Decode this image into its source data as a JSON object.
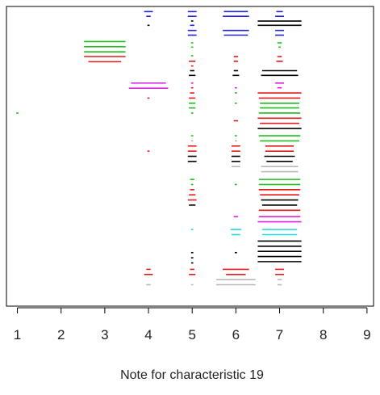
{
  "chart_data": {
    "type": "scatter",
    "title": "",
    "xlabel": "Note for characteristic 19",
    "ylabel": "",
    "xlim": [
      0.75,
      9.15
    ],
    "ylim": [
      0,
      70
    ],
    "grid": false,
    "legend": "none",
    "x_ticks": [
      1,
      2,
      3,
      4,
      5,
      6,
      7,
      8,
      9
    ],
    "x_tick_labels": [
      "1",
      "2",
      "3",
      "4",
      "5",
      "6",
      "7",
      "8",
      "9"
    ],
    "mark_style": "horizontal segments centred on each note; segment length grows with the number of occurrences",
    "colors": {
      "black": "#000000",
      "red": "#e41a1c",
      "green": "#1fbf1f",
      "blue": "#2222dd",
      "magenta": "#e020e0",
      "cyan": "#22d8d8",
      "gray": "#b8b8b8"
    },
    "segments": [
      {
        "x": 4,
        "y": 68.8,
        "width": 0.2,
        "color": "blue"
      },
      {
        "x": 4,
        "y": 67.7,
        "width": 0.1,
        "color": "blue"
      },
      {
        "x": 4,
        "y": 65.6,
        "width": 0.05,
        "color": "black"
      },
      {
        "x": 5,
        "y": 68.8,
        "width": 0.2,
        "color": "blue"
      },
      {
        "x": 5,
        "y": 67.7,
        "width": 0.2,
        "color": "blue"
      },
      {
        "x": 5,
        "y": 66.6,
        "width": 0.05,
        "color": "black"
      },
      {
        "x": 5,
        "y": 65.6,
        "width": 0.1,
        "color": "blue"
      },
      {
        "x": 5,
        "y": 64.4,
        "width": 0.2,
        "color": "blue"
      },
      {
        "x": 5,
        "y": 63.3,
        "width": 0.2,
        "color": "blue"
      },
      {
        "x": 6,
        "y": 68.8,
        "width": 0.55,
        "color": "blue"
      },
      {
        "x": 6,
        "y": 67.7,
        "width": 0.6,
        "color": "blue"
      },
      {
        "x": 6,
        "y": 64.4,
        "width": 0.6,
        "color": "blue"
      },
      {
        "x": 6,
        "y": 63.3,
        "width": 0.55,
        "color": "blue"
      },
      {
        "x": 7,
        "y": 68.8,
        "width": 0.15,
        "color": "blue"
      },
      {
        "x": 7,
        "y": 67.7,
        "width": 0.2,
        "color": "blue"
      },
      {
        "x": 7,
        "y": 66.6,
        "width": 1.0,
        "color": "black"
      },
      {
        "x": 7,
        "y": 65.6,
        "width": 1.0,
        "color": "black"
      },
      {
        "x": 7,
        "y": 64.4,
        "width": 0.2,
        "color": "blue"
      },
      {
        "x": 7,
        "y": 63.3,
        "width": 0.2,
        "color": "blue"
      },
      {
        "x": 3,
        "y": 61.8,
        "width": 0.95,
        "color": "green"
      },
      {
        "x": 3,
        "y": 60.6,
        "width": 0.95,
        "color": "green"
      },
      {
        "x": 3,
        "y": 59.4,
        "width": 0.95,
        "color": "green"
      },
      {
        "x": 3,
        "y": 58.3,
        "width": 0.95,
        "color": "red"
      },
      {
        "x": 3,
        "y": 57.1,
        "width": 0.75,
        "color": "red"
      },
      {
        "x": 5,
        "y": 61.5,
        "width": 0.05,
        "color": "green"
      },
      {
        "x": 5,
        "y": 60.5,
        "width": 0.05,
        "color": "green"
      },
      {
        "x": 5,
        "y": 58.5,
        "width": 0.05,
        "color": "green"
      },
      {
        "x": 5,
        "y": 57.2,
        "width": 0.15,
        "color": "red"
      },
      {
        "x": 5,
        "y": 56.1,
        "width": 0.05,
        "color": "red"
      },
      {
        "x": 5,
        "y": 55.0,
        "width": 0.1,
        "color": "black"
      },
      {
        "x": 5,
        "y": 53.9,
        "width": 0.15,
        "color": "black"
      },
      {
        "x": 6,
        "y": 58.3,
        "width": 0.1,
        "color": "red"
      },
      {
        "x": 6,
        "y": 57.2,
        "width": 0.1,
        "color": "red"
      },
      {
        "x": 6,
        "y": 55.0,
        "width": 0.1,
        "color": "black"
      },
      {
        "x": 6,
        "y": 53.9,
        "width": 0.15,
        "color": "black"
      },
      {
        "x": 7,
        "y": 61.5,
        "width": 0.1,
        "color": "green"
      },
      {
        "x": 7,
        "y": 60.5,
        "width": 0.05,
        "color": "green"
      },
      {
        "x": 7,
        "y": 58.3,
        "width": 0.1,
        "color": "red"
      },
      {
        "x": 7,
        "y": 57.2,
        "width": 0.15,
        "color": "red"
      },
      {
        "x": 7,
        "y": 55.0,
        "width": 0.8,
        "color": "black"
      },
      {
        "x": 7,
        "y": 53.9,
        "width": 0.85,
        "color": "black"
      },
      {
        "x": 4,
        "y": 52.1,
        "width": 0.8,
        "color": "magenta"
      },
      {
        "x": 4,
        "y": 50.9,
        "width": 0.9,
        "color": "magenta"
      },
      {
        "x": 4,
        "y": 48.6,
        "width": 0.05,
        "color": "red"
      },
      {
        "x": 5,
        "y": 52.1,
        "width": 0.05,
        "color": "magenta"
      },
      {
        "x": 5,
        "y": 51.0,
        "width": 0.05,
        "color": "red"
      },
      {
        "x": 5,
        "y": 49.8,
        "width": 0.1,
        "color": "red"
      },
      {
        "x": 5,
        "y": 48.6,
        "width": 0.15,
        "color": "red"
      },
      {
        "x": 5,
        "y": 47.4,
        "width": 0.15,
        "color": "green"
      },
      {
        "x": 5,
        "y": 46.3,
        "width": 0.15,
        "color": "green"
      },
      {
        "x": 6,
        "y": 51.0,
        "width": 0.05,
        "color": "magenta"
      },
      {
        "x": 6,
        "y": 49.8,
        "width": 0.05,
        "color": "green"
      },
      {
        "x": 6,
        "y": 47.4,
        "width": 0.05,
        "color": "green"
      },
      {
        "x": 7,
        "y": 52.1,
        "width": 0.2,
        "color": "magenta"
      },
      {
        "x": 7,
        "y": 51.0,
        "width": 0.1,
        "color": "magenta"
      },
      {
        "x": 7,
        "y": 49.8,
        "width": 1.0,
        "color": "red"
      },
      {
        "x": 7,
        "y": 48.6,
        "width": 0.95,
        "color": "red"
      },
      {
        "x": 7,
        "y": 47.4,
        "width": 0.9,
        "color": "green"
      },
      {
        "x": 7,
        "y": 46.3,
        "width": 0.9,
        "color": "green"
      },
      {
        "x": 1,
        "y": 45.1,
        "width": 0.05,
        "color": "green"
      },
      {
        "x": 5,
        "y": 45.1,
        "width": 0.05,
        "color": "green"
      },
      {
        "x": 6,
        "y": 43.3,
        "width": 0.1,
        "color": "red"
      },
      {
        "x": 7,
        "y": 45.1,
        "width": 0.95,
        "color": "green"
      },
      {
        "x": 7,
        "y": 43.9,
        "width": 1.0,
        "color": "red"
      },
      {
        "x": 7,
        "y": 42.7,
        "width": 0.9,
        "color": "red"
      },
      {
        "x": 7,
        "y": 41.5,
        "width": 1.0,
        "color": "black"
      },
      {
        "x": 5,
        "y": 39.8,
        "width": 0.05,
        "color": "green"
      },
      {
        "x": 5,
        "y": 38.6,
        "width": 0.05,
        "color": "gray"
      },
      {
        "x": 5,
        "y": 37.4,
        "width": 0.2,
        "color": "red"
      },
      {
        "x": 5,
        "y": 36.2,
        "width": 0.2,
        "color": "red"
      },
      {
        "x": 5,
        "y": 35.0,
        "width": 0.2,
        "color": "black"
      },
      {
        "x": 5,
        "y": 33.8,
        "width": 0.2,
        "color": "black"
      },
      {
        "x": 4,
        "y": 36.2,
        "width": 0.05,
        "color": "red"
      },
      {
        "x": 6,
        "y": 39.8,
        "width": 0.05,
        "color": "green"
      },
      {
        "x": 6,
        "y": 38.6,
        "width": 0.05,
        "color": "gray"
      },
      {
        "x": 6,
        "y": 37.4,
        "width": 0.2,
        "color": "red"
      },
      {
        "x": 6,
        "y": 36.2,
        "width": 0.2,
        "color": "red"
      },
      {
        "x": 6,
        "y": 35.0,
        "width": 0.2,
        "color": "black"
      },
      {
        "x": 6,
        "y": 33.8,
        "width": 0.2,
        "color": "black"
      },
      {
        "x": 6,
        "y": 32.6,
        "width": 0.2,
        "color": "gray"
      },
      {
        "x": 7,
        "y": 39.8,
        "width": 0.95,
        "color": "green"
      },
      {
        "x": 7,
        "y": 38.6,
        "width": 0.9,
        "color": "green"
      },
      {
        "x": 7,
        "y": 37.4,
        "width": 0.65,
        "color": "red"
      },
      {
        "x": 7,
        "y": 36.2,
        "width": 0.65,
        "color": "red"
      },
      {
        "x": 7,
        "y": 35.0,
        "width": 0.7,
        "color": "black"
      },
      {
        "x": 7,
        "y": 33.8,
        "width": 0.6,
        "color": "black"
      },
      {
        "x": 7,
        "y": 32.6,
        "width": 0.85,
        "color": "gray"
      },
      {
        "x": 7,
        "y": 31.4,
        "width": 0.85,
        "color": "gray"
      },
      {
        "x": 5,
        "y": 29.6,
        "width": 0.1,
        "color": "green"
      },
      {
        "x": 5,
        "y": 28.4,
        "width": 0.05,
        "color": "green"
      },
      {
        "x": 5,
        "y": 27.2,
        "width": 0.1,
        "color": "red"
      },
      {
        "x": 5,
        "y": 26.0,
        "width": 0.15,
        "color": "red"
      },
      {
        "x": 5,
        "y": 24.8,
        "width": 0.2,
        "color": "red"
      },
      {
        "x": 5,
        "y": 23.6,
        "width": 0.15,
        "color": "black"
      },
      {
        "x": 6,
        "y": 28.4,
        "width": 0.05,
        "color": "green"
      },
      {
        "x": 7,
        "y": 29.6,
        "width": 0.95,
        "color": "green"
      },
      {
        "x": 7,
        "y": 28.4,
        "width": 0.95,
        "color": "green"
      },
      {
        "x": 7,
        "y": 27.2,
        "width": 0.95,
        "color": "red"
      },
      {
        "x": 7,
        "y": 26.0,
        "width": 0.9,
        "color": "red"
      },
      {
        "x": 7,
        "y": 24.8,
        "width": 0.85,
        "color": "black"
      },
      {
        "x": 7,
        "y": 23.6,
        "width": 0.8,
        "color": "black"
      },
      {
        "x": 7,
        "y": 22.4,
        "width": 0.95,
        "color": "red"
      },
      {
        "x": 6,
        "y": 20.9,
        "width": 0.1,
        "color": "magenta"
      },
      {
        "x": 7,
        "y": 20.9,
        "width": 0.95,
        "color": "magenta"
      },
      {
        "x": 7,
        "y": 19.7,
        "width": 1.0,
        "color": "magenta"
      },
      {
        "x": 5,
        "y": 17.9,
        "width": 0.05,
        "color": "cyan"
      },
      {
        "x": 6,
        "y": 17.9,
        "width": 0.25,
        "color": "cyan"
      },
      {
        "x": 6,
        "y": 16.7,
        "width": 0.2,
        "color": "cyan"
      },
      {
        "x": 7,
        "y": 17.9,
        "width": 0.8,
        "color": "cyan"
      },
      {
        "x": 7,
        "y": 16.7,
        "width": 0.8,
        "color": "cyan"
      },
      {
        "x": 5,
        "y": 12.5,
        "width": 0.05,
        "color": "black"
      },
      {
        "x": 5,
        "y": 11.3,
        "width": 0.05,
        "color": "black"
      },
      {
        "x": 5,
        "y": 10.1,
        "width": 0.05,
        "color": "black"
      },
      {
        "x": 6,
        "y": 12.5,
        "width": 0.05,
        "color": "black"
      },
      {
        "x": 7,
        "y": 15.2,
        "width": 1.0,
        "color": "black"
      },
      {
        "x": 7,
        "y": 14.0,
        "width": 1.0,
        "color": "black"
      },
      {
        "x": 7,
        "y": 12.8,
        "width": 1.0,
        "color": "black"
      },
      {
        "x": 7,
        "y": 11.6,
        "width": 1.0,
        "color": "black"
      },
      {
        "x": 7,
        "y": 10.4,
        "width": 1.0,
        "color": "black"
      },
      {
        "x": 4,
        "y": 8.6,
        "width": 0.1,
        "color": "red"
      },
      {
        "x": 4,
        "y": 7.4,
        "width": 0.2,
        "color": "red"
      },
      {
        "x": 4,
        "y": 5.0,
        "width": 0.1,
        "color": "gray"
      },
      {
        "x": 5,
        "y": 8.6,
        "width": 0.1,
        "color": "red"
      },
      {
        "x": 5,
        "y": 7.4,
        "width": 0.15,
        "color": "red"
      },
      {
        "x": 5,
        "y": 5.0,
        "width": 0.05,
        "color": "gray"
      },
      {
        "x": 6,
        "y": 8.6,
        "width": 0.6,
        "color": "red"
      },
      {
        "x": 6,
        "y": 7.4,
        "width": 0.45,
        "color": "red"
      },
      {
        "x": 6,
        "y": 6.2,
        "width": 0.9,
        "color": "gray"
      },
      {
        "x": 6,
        "y": 5.0,
        "width": 0.9,
        "color": "gray"
      },
      {
        "x": 7,
        "y": 8.6,
        "width": 0.2,
        "color": "red"
      },
      {
        "x": 7,
        "y": 7.4,
        "width": 0.2,
        "color": "red"
      },
      {
        "x": 7,
        "y": 6.2,
        "width": 0.1,
        "color": "gray"
      },
      {
        "x": 7,
        "y": 5.0,
        "width": 0.1,
        "color": "gray"
      }
    ]
  }
}
